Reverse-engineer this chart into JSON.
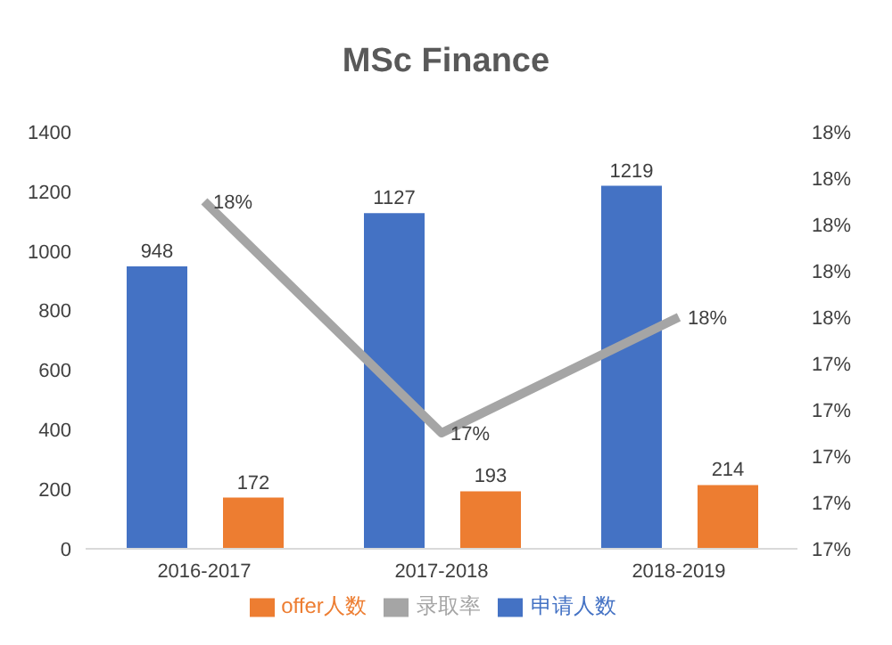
{
  "chart_data": {
    "type": "bar",
    "title": "MSc Finance",
    "categories": [
      "2016-2017",
      "2017-2018",
      "2018-2019"
    ],
    "series": [
      {
        "name": "申请人数",
        "color": "#4472c4",
        "values": [
          948,
          1127,
          1219
        ]
      },
      {
        "name": "offer人数",
        "color": "#ed7d31",
        "values": [
          172,
          193,
          214
        ]
      },
      {
        "name": "录取率",
        "type": "line",
        "axis": "y2",
        "color": "#a5a5a5",
        "values": [
          18.1,
          17.1,
          17.6
        ],
        "value_labels": [
          "18%",
          "17%",
          "18%"
        ]
      }
    ],
    "ylim": [
      0,
      1400
    ],
    "yticks": [
      0,
      200,
      400,
      600,
      800,
      1000,
      1200,
      1400
    ],
    "y2lim": [
      16.6,
      18.4
    ],
    "y2ticks": [
      {
        "value": 16.6,
        "label": "17%"
      },
      {
        "value": 16.8,
        "label": "17%"
      },
      {
        "value": 17.0,
        "label": "17%"
      },
      {
        "value": 17.2,
        "label": "17%"
      },
      {
        "value": 17.4,
        "label": "17%"
      },
      {
        "value": 17.6,
        "label": "18%"
      },
      {
        "value": 17.8,
        "label": "18%"
      },
      {
        "value": 18.0,
        "label": "18%"
      },
      {
        "value": 18.2,
        "label": "18%"
      },
      {
        "value": 18.4,
        "label": "18%"
      }
    ],
    "data_labels": true,
    "legend": "bottom",
    "marker": "none"
  }
}
